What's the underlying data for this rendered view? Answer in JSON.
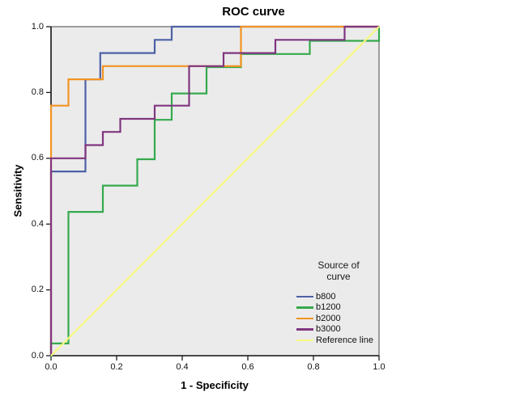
{
  "chart_data": {
    "type": "line",
    "subtype": "roc-step-curves",
    "title": "ROC curve",
    "xlabel": "1 - Specificity",
    "ylabel": "Sensitivity",
    "xlim": [
      0.0,
      1.0
    ],
    "ylim": [
      0.0,
      1.0
    ],
    "x_ticks": [
      0.0,
      0.2,
      0.4,
      0.6,
      0.8,
      1.0
    ],
    "y_ticks": [
      0.0,
      0.2,
      0.4,
      0.6,
      0.8,
      1.0
    ],
    "grid": false,
    "plot_background": "#ebebeb",
    "frame_color": "#6e6e6e",
    "axis_color": "#1c1c1c",
    "legend_title": "Source of curve",
    "legend_position": "inside-bottom-right",
    "series": [
      {
        "name": "b800",
        "color": "#4d61a6",
        "points": [
          [
            0,
            0
          ],
          [
            0,
            0.56
          ],
          [
            0.105,
            0.56
          ],
          [
            0.105,
            0.84
          ],
          [
            0.15,
            0.84
          ],
          [
            0.15,
            0.92
          ],
          [
            0.316,
            0.92
          ],
          [
            0.316,
            0.96
          ],
          [
            0.368,
            0.96
          ],
          [
            0.368,
            1.0
          ],
          [
            1.0,
            1.0
          ]
        ]
      },
      {
        "name": "b1200",
        "color": "#35a94c",
        "points": [
          [
            0,
            0
          ],
          [
            0,
            0.04
          ],
          [
            0.053,
            0.04
          ],
          [
            0.053,
            0.44
          ],
          [
            0.158,
            0.44
          ],
          [
            0.158,
            0.52
          ],
          [
            0.263,
            0.52
          ],
          [
            0.263,
            0.6
          ],
          [
            0.316,
            0.6
          ],
          [
            0.316,
            0.72
          ],
          [
            0.368,
            0.72
          ],
          [
            0.368,
            0.8
          ],
          [
            0.474,
            0.8
          ],
          [
            0.474,
            0.88
          ],
          [
            0.579,
            0.88
          ],
          [
            0.579,
            0.92
          ],
          [
            0.789,
            0.92
          ],
          [
            0.789,
            0.96
          ],
          [
            1.0,
            0.96
          ],
          [
            1.0,
            1.0
          ]
        ]
      },
      {
        "name": "b2000",
        "color": "#f29422",
        "points": [
          [
            0,
            0
          ],
          [
            0,
            0.76
          ],
          [
            0.053,
            0.76
          ],
          [
            0.053,
            0.84
          ],
          [
            0.158,
            0.84
          ],
          [
            0.158,
            0.88
          ],
          [
            0.579,
            0.88
          ],
          [
            0.579,
            1.0
          ],
          [
            1.0,
            1.0
          ]
        ]
      },
      {
        "name": "b3000",
        "color": "#803680",
        "points": [
          [
            0,
            0
          ],
          [
            0,
            0.6
          ],
          [
            0.105,
            0.6
          ],
          [
            0.105,
            0.64
          ],
          [
            0.158,
            0.64
          ],
          [
            0.158,
            0.68
          ],
          [
            0.211,
            0.68
          ],
          [
            0.211,
            0.72
          ],
          [
            0.316,
            0.72
          ],
          [
            0.316,
            0.76
          ],
          [
            0.421,
            0.76
          ],
          [
            0.421,
            0.88
          ],
          [
            0.526,
            0.88
          ],
          [
            0.526,
            0.92
          ],
          [
            0.684,
            0.92
          ],
          [
            0.684,
            0.96
          ],
          [
            0.895,
            0.96
          ],
          [
            0.895,
            1.0
          ],
          [
            1.0,
            1.0
          ]
        ]
      },
      {
        "name": "Reference line",
        "color": "#f7f87e",
        "points": [
          [
            0,
            0
          ],
          [
            1.0,
            1.0
          ]
        ]
      }
    ]
  }
}
